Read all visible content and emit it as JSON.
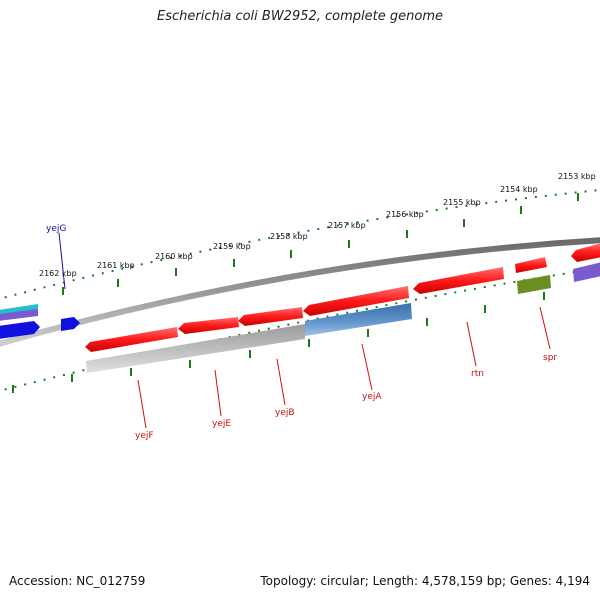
{
  "title": "Escherichia coli BW2952, complete genome",
  "footer": {
    "accession": "Accession: NC_012759",
    "summary": "Topology: circular; Length: 4,578,159 bp; Genes: 4,194"
  },
  "colors": {
    "forward_gene": "#ff2020",
    "forward_gene_dark": "#c80000",
    "rna_gene": "#5a8fc8",
    "green_gene": "#6b8e23",
    "purple_gene": "#7a5ad0",
    "blue_gene": "#1010e0",
    "cyan_gene": "#20c0d0",
    "backbone": "#888888",
    "ruler": "#1a7a1a",
    "label_red": "#cc1111",
    "label_blue": "#1010a0"
  },
  "ruler_labels": [
    "2153 kbp",
    "2154 kbp",
    "2155 kbp",
    "2156 kbp",
    "2157 kbp",
    "2158 kbp",
    "2159 kbp",
    "2160 kbp",
    "2161 kbp",
    "2162 kbp"
  ],
  "gene_labels": [
    "yejF",
    "yejE",
    "yejB",
    "yejA",
    "rtn",
    "spr",
    "yejG"
  ]
}
